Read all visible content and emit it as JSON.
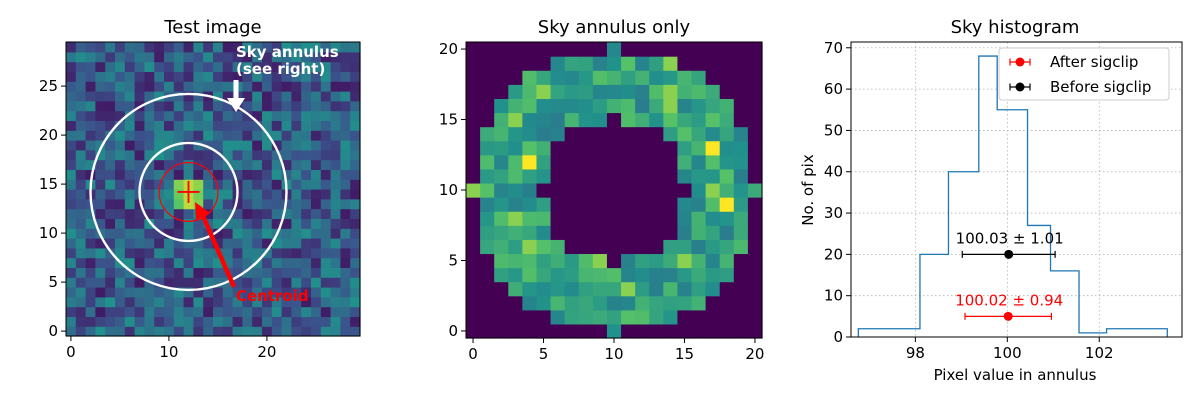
{
  "chart_data": [
    {
      "type": "heatmap",
      "title": "Test image",
      "xlim": [
        -0.5,
        29.5
      ],
      "ylim": [
        -0.5,
        29.5
      ],
      "xticks": [
        0,
        10,
        20
      ],
      "yticks": [
        0,
        5,
        10,
        15,
        20,
        25
      ],
      "grid_size": [
        30,
        30
      ],
      "star_center": [
        12,
        14
      ],
      "circles": [
        {
          "center": [
            12,
            14.2
          ],
          "radius": 3,
          "color": "#ff0000"
        },
        {
          "center": [
            12,
            14.2
          ],
          "radius": 5,
          "color": "#ffffff"
        },
        {
          "center": [
            12,
            14.2
          ],
          "radius": 10,
          "color": "#ffffff"
        }
      ],
      "annotations": [
        {
          "text": "Sky annulus",
          "color": "#ffffff"
        },
        {
          "text": "(see right)",
          "color": "#ffffff"
        },
        {
          "text": "Centroid",
          "color": "#ff0000"
        }
      ]
    },
    {
      "type": "heatmap",
      "title": "Sky annulus only",
      "xlim": [
        -0.5,
        20.5
      ],
      "ylim": [
        -0.5,
        20.5
      ],
      "xticks": [
        0,
        5,
        10,
        15,
        20
      ],
      "yticks": [
        0,
        5,
        10,
        15,
        20
      ],
      "grid_size": [
        21,
        21
      ],
      "center": [
        10,
        10
      ],
      "inner_radius": 5,
      "outer_radius": 10
    },
    {
      "type": "histogram",
      "title": "Sky histogram",
      "xlabel": "Pixel value in annulus",
      "ylabel": "No. of pix",
      "xlim": [
        96.6,
        103.8
      ],
      "ylim": [
        0,
        71.4
      ],
      "xticks": [
        98,
        100,
        102
      ],
      "yticks": [
        0,
        10,
        20,
        30,
        40,
        50,
        60,
        70
      ],
      "grid": true,
      "legend_position": "top-right",
      "bin_edges": [
        96.76,
        97.48,
        98.1,
        98.72,
        99.38,
        99.78,
        100.44,
        100.94,
        101.56,
        102.16,
        102.88,
        103.48
      ],
      "counts": [
        2,
        2,
        20,
        40,
        68,
        55,
        27,
        16,
        1,
        2,
        2
      ],
      "series": [
        {
          "name": "After sigclip",
          "color": "#ff0000",
          "x": 100.02,
          "y": 5,
          "xerr": 0.94,
          "label": "100.02 ± 0.94"
        },
        {
          "name": "Before sigclip",
          "color": "#000000",
          "x": 100.03,
          "y": 20,
          "xerr": 1.01,
          "label": "100.03 ± 1.01"
        }
      ]
    }
  ]
}
